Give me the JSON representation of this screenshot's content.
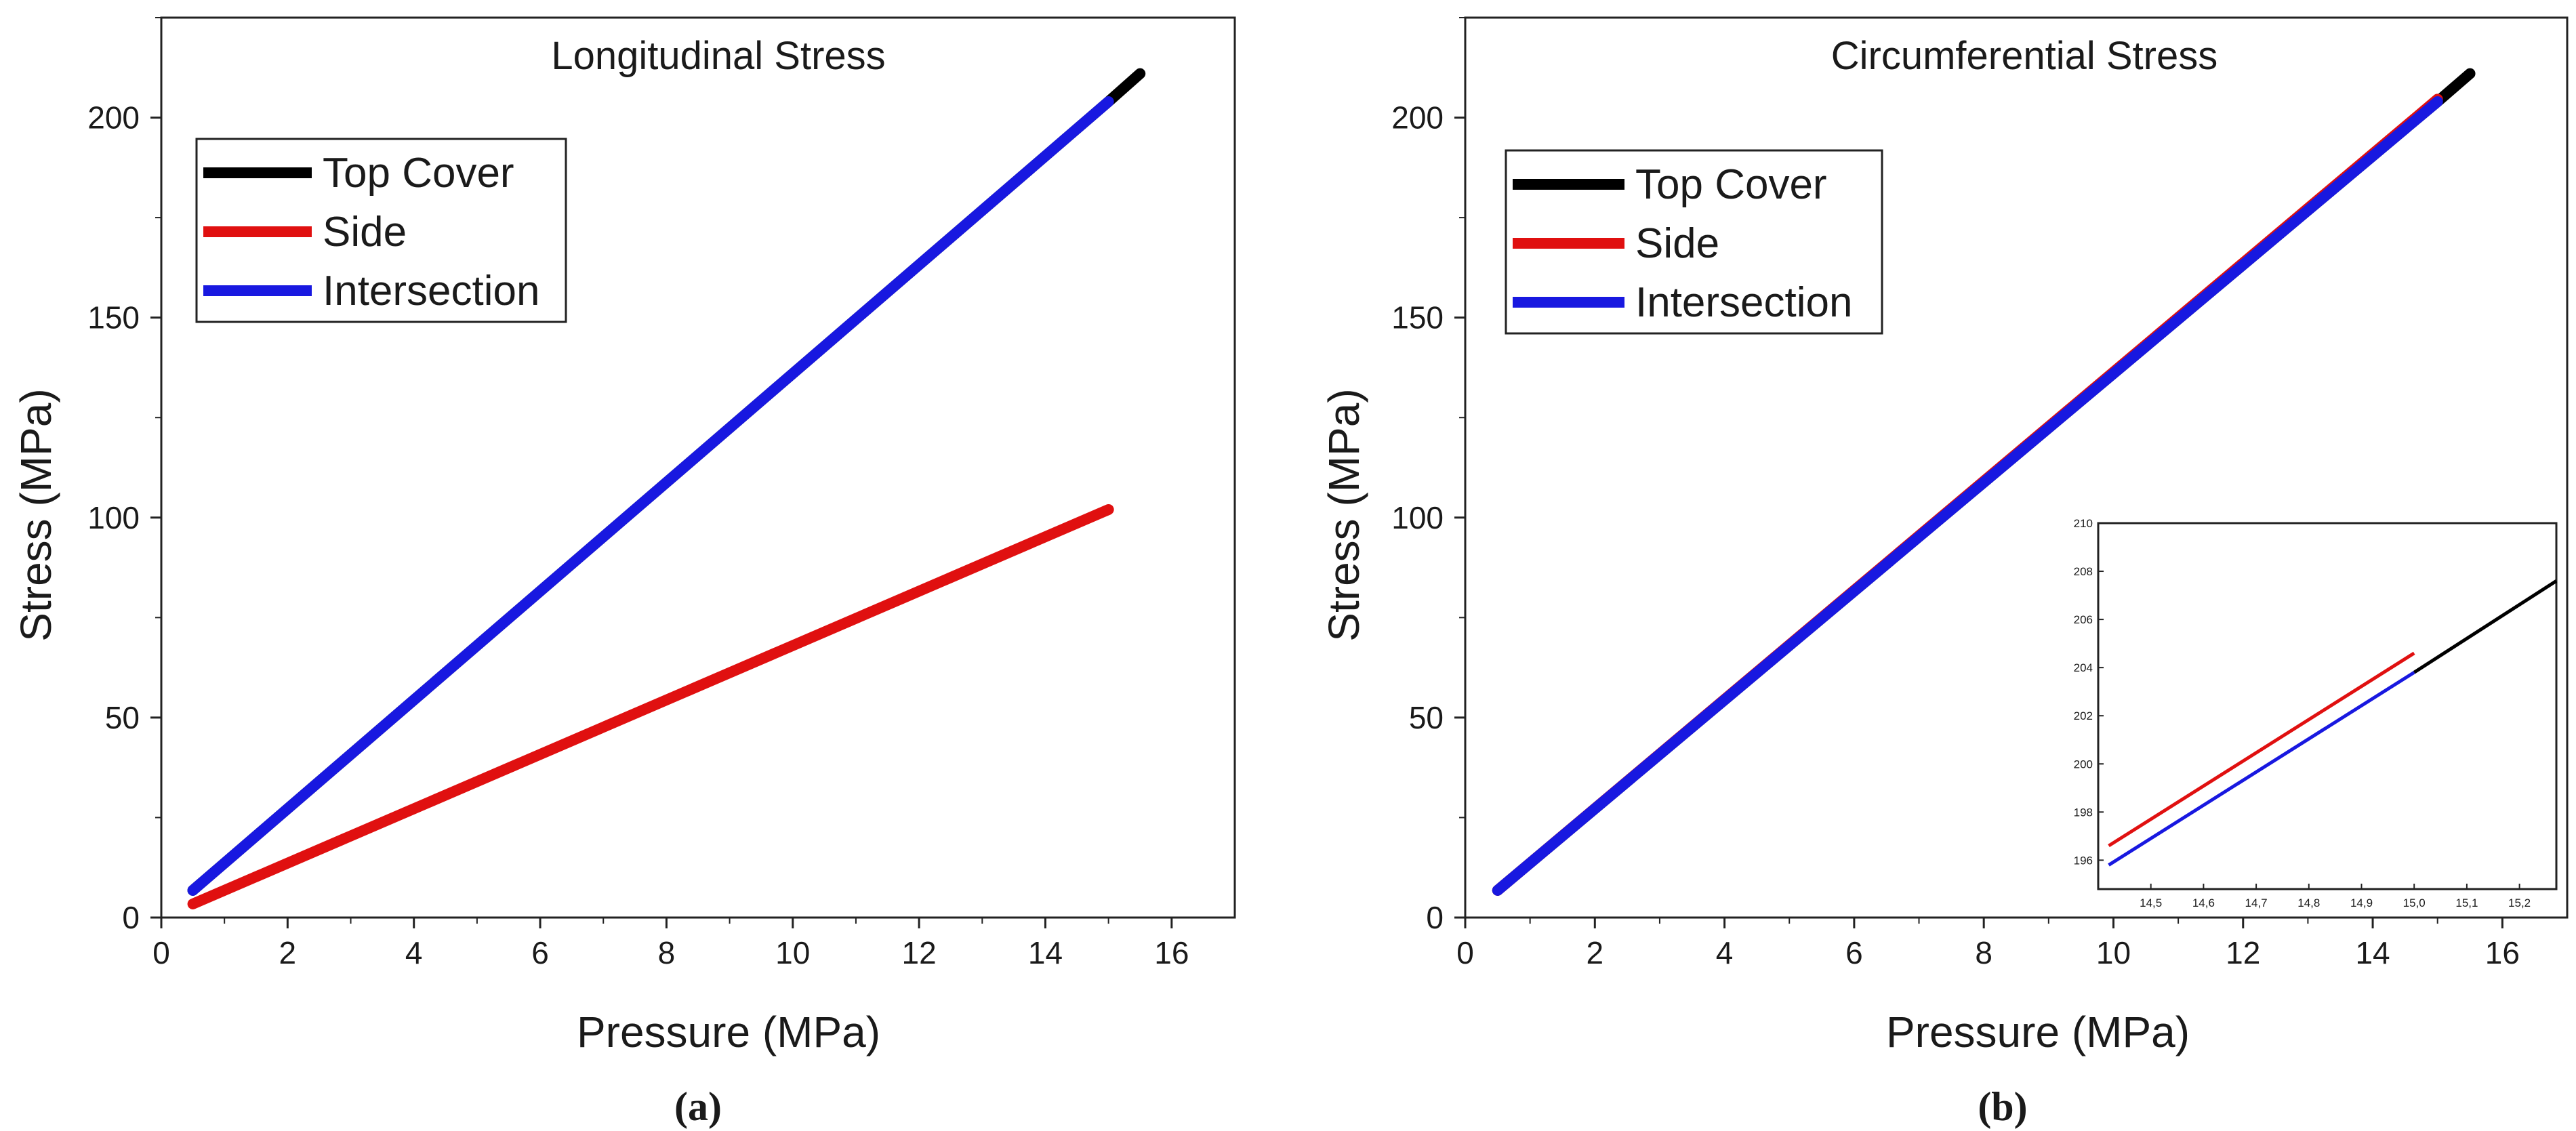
{
  "colors": {
    "top_cover": "#000000",
    "side": "#e01010",
    "intersection": "#1818e0",
    "axis": "#222222"
  },
  "icons": [],
  "chart_data": [
    {
      "id": "a",
      "type": "line",
      "title": "Longitudinal Stress",
      "caption": "(a)",
      "xlabel": "Pressure (MPa)",
      "ylabel": "Stress (MPa)",
      "xlim": [
        0,
        17
      ],
      "ylim": [
        0,
        225
      ],
      "xticks": [
        0,
        2,
        4,
        6,
        8,
        10,
        12,
        14,
        16
      ],
      "yticks": [
        0,
        50,
        100,
        150,
        200
      ],
      "legend_position": "top-left",
      "series": [
        {
          "name": "Top Cover",
          "color_key": "top_cover",
          "x": [
            0.5,
            15.0,
            15.5
          ],
          "y": [
            6.8,
            204.0,
            211.0
          ]
        },
        {
          "name": "Side",
          "color_key": "side",
          "x": [
            0.5,
            15.0
          ],
          "y": [
            3.4,
            102.0
          ]
        },
        {
          "name": "Intersection",
          "color_key": "intersection",
          "x": [
            0.5,
            15.0
          ],
          "y": [
            6.8,
            204.0
          ]
        }
      ]
    },
    {
      "id": "b",
      "type": "line",
      "title": "Circumferential  Stress",
      "caption": "(b)",
      "xlabel": "Pressure (MPa)",
      "ylabel": "Stress (MPa)",
      "xlim": [
        0,
        17
      ],
      "ylim": [
        0,
        225
      ],
      "xticks": [
        0,
        2,
        4,
        6,
        8,
        10,
        12,
        14,
        16
      ],
      "yticks": [
        0,
        50,
        100,
        150,
        200
      ],
      "legend_position": "top-left",
      "series": [
        {
          "name": "Top Cover",
          "color_key": "top_cover",
          "x": [
            0.5,
            15.0,
            15.5
          ],
          "y": [
            6.8,
            204.0,
            211.0
          ]
        },
        {
          "name": "Side",
          "color_key": "side",
          "x": [
            0.5,
            15.0
          ],
          "y": [
            6.8,
            204.6
          ]
        },
        {
          "name": "Intersection",
          "color_key": "intersection",
          "x": [
            0.5,
            15.0
          ],
          "y": [
            6.8,
            204.0
          ]
        }
      ],
      "inset": {
        "type": "line",
        "xlim": [
          14.4,
          15.27
        ],
        "ylim": [
          194.8,
          210.0
        ],
        "xticks": [
          "14,5",
          "14,6",
          "14,7",
          "14,8",
          "14,9",
          "15,0",
          "15,1",
          "15,2"
        ],
        "xtick_values": [
          14.5,
          14.6,
          14.7,
          14.8,
          14.9,
          15.0,
          15.1,
          15.2
        ],
        "yticks": [
          "196",
          "198",
          "200",
          "202",
          "204",
          "206",
          "208",
          "210"
        ],
        "ytick_values": [
          196,
          198,
          200,
          202,
          204,
          206,
          208,
          210
        ],
        "series": [
          {
            "name": "Top Cover",
            "color_key": "top_cover",
            "x": [
              15.0,
              15.27
            ],
            "y": [
              203.8,
              207.6
            ]
          },
          {
            "name": "Side",
            "color_key": "side",
            "x": [
              14.42,
              15.0
            ],
            "y": [
              196.6,
              204.6
            ]
          },
          {
            "name": "Intersection",
            "color_key": "intersection",
            "x": [
              14.42,
              15.0
            ],
            "y": [
              195.8,
              203.8
            ]
          }
        ]
      }
    }
  ]
}
